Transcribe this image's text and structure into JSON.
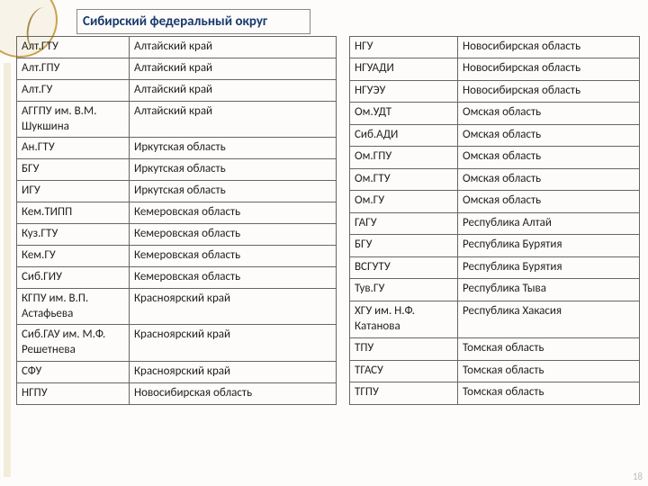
{
  "title": "Сибирский федеральный округ",
  "page_number": "18",
  "left_rows": [
    [
      "Алт.ГТУ",
      "Алтайский край"
    ],
    [
      "Алт.ГПУ",
      "Алтайский край"
    ],
    [
      "Алт.ГУ",
      "Алтайский край"
    ],
    [
      "АГГПУ им. В.М. Шукшина",
      "Алтайский край"
    ],
    [
      "Ан.ГТУ",
      "Иркутская область"
    ],
    [
      "БГУ",
      "Иркутская область"
    ],
    [
      "ИГУ",
      "Иркутская область"
    ],
    [
      "Кем.ТИПП",
      "Кемеровская область"
    ],
    [
      "Куз.ГТУ",
      "Кемеровская область"
    ],
    [
      "Кем.ГУ",
      "Кемеровская область"
    ],
    [
      "Сиб.ГИУ",
      "Кемеровская область"
    ],
    [
      "КГПУ им. В.П. Астафьева",
      "Красноярский край"
    ],
    [
      "Сиб.ГАУ им. М.Ф. Решетнева",
      "Красноярский край"
    ],
    [
      "СФУ",
      "Красноярский край"
    ],
    [
      "НГПУ",
      "Новосибирская область"
    ]
  ],
  "right_rows": [
    [
      "НГУ",
      "Новосибирская область"
    ],
    [
      "НГУАДИ",
      "Новосибирская область"
    ],
    [
      "НГУЭУ",
      "Новосибирская область"
    ],
    [
      "Ом.УДТ",
      "Омская область"
    ],
    [
      "Сиб.АДИ",
      "Омская область"
    ],
    [
      "Ом.ГПУ",
      "Омская область"
    ],
    [
      "Ом.ГТУ",
      "Омская область"
    ],
    [
      "Ом.ГУ",
      "Омская область"
    ],
    [
      "ГАГУ",
      "Республика Алтай"
    ],
    [
      "БГУ",
      "Республика Бурятия"
    ],
    [
      "ВСГУТУ",
      "Республика Бурятия"
    ],
    [
      "Тув.ГУ",
      "Республика Тыва"
    ],
    [
      "ХГУ им. Н.Ф. Катанова",
      "Республика Хакасия"
    ],
    [
      "ТПУ",
      "Томская область"
    ],
    [
      "ТГАСУ",
      "Томская область"
    ],
    [
      "ТГПУ",
      "Томская область"
    ]
  ]
}
